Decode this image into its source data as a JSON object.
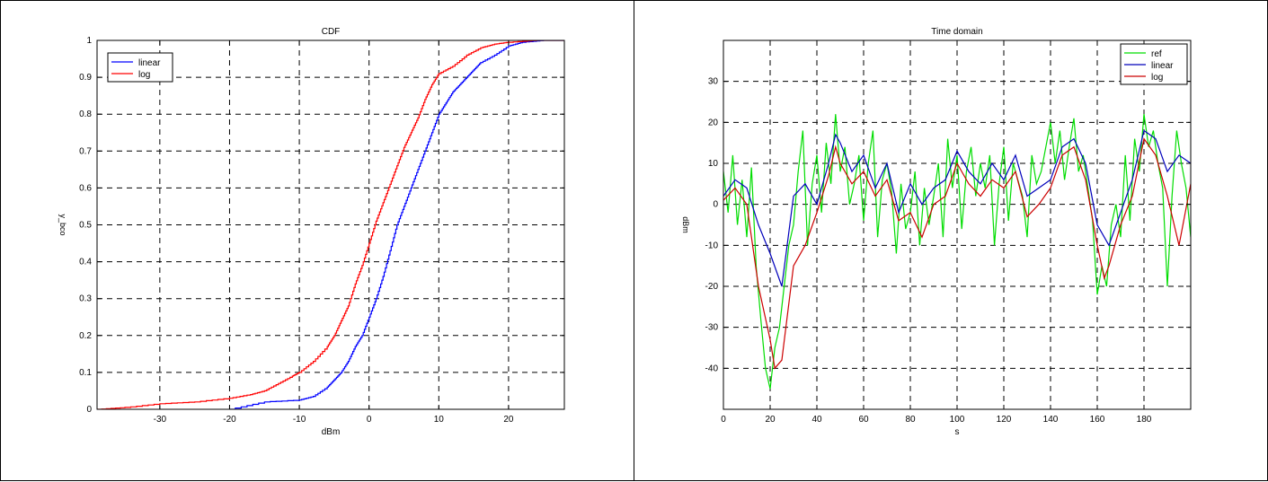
{
  "chart_data": [
    {
      "type": "line",
      "title": "CDF",
      "xlabel": "dBm",
      "ylabel": "y_bco",
      "xlim": [
        -39,
        28
      ],
      "ylim": [
        0,
        1
      ],
      "xticks": [
        -30,
        -20,
        -10,
        0,
        10,
        20
      ],
      "yticks": [
        0,
        0.1,
        0.2,
        0.3,
        0.4,
        0.5,
        0.6,
        0.7,
        0.8,
        0.9,
        1
      ],
      "xtick_labels": [
        "-30",
        "-20",
        "-10",
        "0",
        "10",
        "20"
      ],
      "ytick_labels": [
        "0",
        "0.1",
        "0.2",
        "0.3",
        "0.4",
        "0.5",
        "0.6",
        "0.7",
        "0.8",
        "0.9",
        "1"
      ],
      "grid": true,
      "legend_position": "top-left",
      "series": [
        {
          "name": "linear",
          "color": "#0000ff",
          "x": [
            -20,
            -15,
            -10,
            -8,
            -6,
            -5,
            -4,
            -3,
            -2,
            -1,
            0,
            1,
            2,
            3,
            4,
            5,
            6,
            7,
            8,
            9,
            10,
            11,
            12,
            13,
            14,
            15,
            16,
            18,
            20,
            22,
            25,
            28
          ],
          "y": [
            0,
            0.02,
            0.025,
            0.035,
            0.06,
            0.08,
            0.1,
            0.13,
            0.17,
            0.2,
            0.25,
            0.3,
            0.36,
            0.43,
            0.5,
            0.55,
            0.6,
            0.65,
            0.7,
            0.75,
            0.8,
            0.83,
            0.86,
            0.88,
            0.9,
            0.92,
            0.94,
            0.96,
            0.985,
            0.995,
            1.0,
            1.0
          ]
        },
        {
          "name": "log",
          "color": "#ff0000",
          "x": [
            -39,
            -35,
            -30,
            -25,
            -20,
            -17,
            -15,
            -13,
            -11,
            -10,
            -8,
            -6,
            -5,
            -4,
            -3,
            -2,
            -1,
            0,
            1,
            2,
            3,
            4,
            5,
            6,
            7,
            8,
            9,
            10,
            12,
            14,
            16,
            18,
            20,
            24,
            28
          ],
          "y": [
            0,
            0.005,
            0.015,
            0.02,
            0.03,
            0.04,
            0.05,
            0.07,
            0.09,
            0.1,
            0.13,
            0.17,
            0.2,
            0.24,
            0.28,
            0.34,
            0.39,
            0.45,
            0.51,
            0.56,
            0.61,
            0.66,
            0.71,
            0.75,
            0.79,
            0.84,
            0.88,
            0.91,
            0.93,
            0.96,
            0.98,
            0.99,
            0.995,
            1.0,
            1.0
          ]
        }
      ]
    },
    {
      "type": "line",
      "title": "Time domain",
      "xlabel": "s",
      "ylabel": "dBm",
      "xlim": [
        0,
        200
      ],
      "ylim": [
        -50,
        40
      ],
      "xticks": [
        0,
        20,
        40,
        60,
        80,
        100,
        120,
        140,
        160,
        180
      ],
      "yticks": [
        -40,
        -30,
        -20,
        -10,
        0,
        10,
        20,
        30
      ],
      "xtick_labels": [
        "0",
        "20",
        "40",
        "60",
        "80",
        "100",
        "120",
        "140",
        "160",
        "180"
      ],
      "ytick_labels": [
        "-40",
        "-30",
        "-20",
        "-10",
        "0",
        "10",
        "20",
        "30"
      ],
      "grid": true,
      "legend_position": "top-right",
      "series": [
        {
          "name": "ref",
          "color": "#00dd00",
          "x": [
            0,
            2,
            4,
            6,
            8,
            10,
            12,
            14,
            16,
            18,
            20,
            22,
            24,
            26,
            28,
            30,
            32,
            34,
            36,
            38,
            40,
            42,
            44,
            46,
            48,
            50,
            52,
            54,
            56,
            58,
            60,
            62,
            64,
            66,
            68,
            70,
            72,
            74,
            76,
            78,
            80,
            82,
            84,
            86,
            88,
            90,
            92,
            94,
            96,
            98,
            100,
            102,
            104,
            106,
            108,
            110,
            112,
            114,
            116,
            118,
            120,
            122,
            124,
            126,
            128,
            130,
            132,
            134,
            136,
            138,
            140,
            142,
            144,
            146,
            148,
            150,
            152,
            154,
            156,
            158,
            160,
            162,
            164,
            166,
            168,
            170,
            172,
            174,
            176,
            178,
            180,
            182,
            184,
            186,
            188,
            190,
            192,
            194,
            196,
            198,
            200
          ],
          "y": [
            8,
            -2,
            12,
            -5,
            6,
            -8,
            9,
            -15,
            -28,
            -40,
            -45,
            -35,
            -30,
            -20,
            -10,
            -5,
            8,
            18,
            -10,
            5,
            12,
            -2,
            15,
            5,
            22,
            8,
            14,
            0,
            5,
            12,
            -4,
            10,
            18,
            -8,
            6,
            10,
            3,
            -12,
            5,
            -6,
            -2,
            8,
            -10,
            4,
            -5,
            2,
            10,
            -8,
            16,
            4,
            12,
            -6,
            8,
            14,
            2,
            10,
            4,
            12,
            -10,
            5,
            14,
            -4,
            10,
            6,
            2,
            -8,
            12,
            5,
            8,
            14,
            20,
            10,
            18,
            6,
            14,
            21,
            8,
            12,
            4,
            -4,
            -22,
            -15,
            -20,
            -5,
            0,
            -8,
            12,
            -4,
            16,
            8,
            22,
            14,
            18,
            10,
            4,
            -20,
            2,
            18,
            10,
            4,
            -8
          ]
        },
        {
          "name": "linear",
          "color": "#0000bb",
          "x": [
            0,
            5,
            10,
            15,
            20,
            25,
            30,
            35,
            40,
            45,
            48,
            50,
            55,
            60,
            65,
            70,
            75,
            80,
            85,
            90,
            95,
            100,
            105,
            110,
            115,
            120,
            125,
            130,
            135,
            140,
            145,
            150,
            155,
            160,
            165,
            170,
            175,
            180,
            185,
            190,
            195,
            200
          ],
          "y": [
            2,
            6,
            4,
            -5,
            -12,
            -20,
            2,
            5,
            0,
            10,
            17,
            15,
            8,
            12,
            4,
            10,
            -2,
            5,
            0,
            4,
            6,
            13,
            8,
            5,
            10,
            6,
            12,
            2,
            4,
            6,
            14,
            16,
            10,
            -5,
            -10,
            -2,
            6,
            18,
            16,
            8,
            12,
            10
          ]
        },
        {
          "name": "log",
          "color": "#cc0000",
          "x": [
            0,
            5,
            10,
            15,
            20,
            22,
            25,
            30,
            35,
            40,
            45,
            48,
            50,
            55,
            60,
            65,
            70,
            75,
            80,
            85,
            90,
            95,
            100,
            105,
            110,
            115,
            120,
            125,
            130,
            135,
            140,
            145,
            150,
            155,
            160,
            163,
            165,
            170,
            175,
            180,
            185,
            190,
            195,
            200
          ],
          "y": [
            1,
            4,
            0,
            -20,
            -33,
            -40,
            -38,
            -15,
            -10,
            -2,
            7,
            14,
            10,
            5,
            8,
            2,
            6,
            -4,
            -2,
            -8,
            0,
            2,
            10,
            5,
            2,
            6,
            4,
            8,
            -3,
            0,
            4,
            12,
            14,
            6,
            -10,
            -18,
            -15,
            -5,
            2,
            16,
            12,
            2,
            -10,
            5
          ]
        }
      ]
    }
  ]
}
